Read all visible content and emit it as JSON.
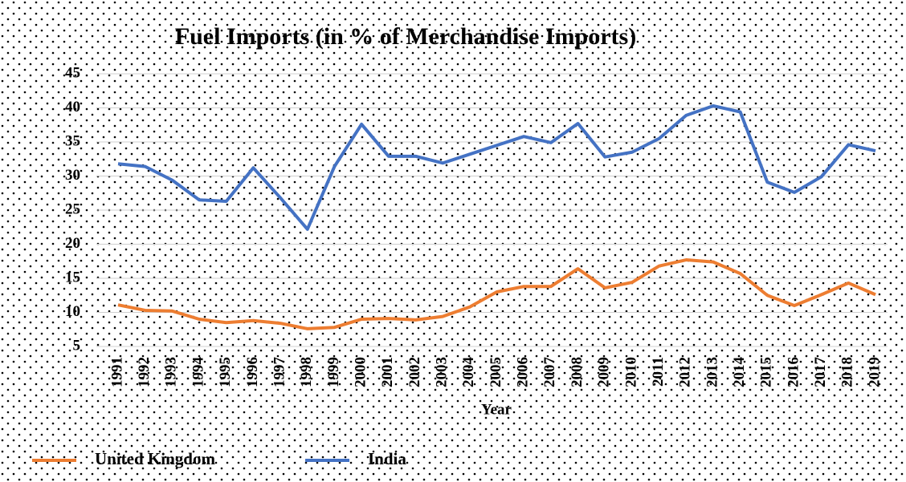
{
  "chart_data": {
    "type": "line",
    "title": "Fuel Imports (in % of Merchandise Imports)",
    "x_label": "Year",
    "categories": [
      "1991",
      "1992",
      "1993",
      "1994",
      "1995",
      "1996",
      "1997",
      "1998",
      "1999",
      "2000",
      "2001",
      "2002",
      "2003",
      "2004",
      "2005",
      "2006",
      "2007",
      "2008",
      "2009",
      "2010",
      "2011",
      "2012",
      "2013",
      "2014",
      "2015",
      "2016",
      "2017",
      "2018",
      "2019"
    ],
    "series": [
      {
        "name": "United Kingdom",
        "color": "#ed7d31",
        "values": [
          11.1,
          10.3,
          10.2,
          9.0,
          8.5,
          8.8,
          8.4,
          7.6,
          7.8,
          9.0,
          9.1,
          8.9,
          9.4,
          10.8,
          13.0,
          13.8,
          13.8,
          16.4,
          13.6,
          14.4,
          16.8,
          17.7,
          17.4,
          15.7,
          12.5,
          11.0,
          12.6,
          14.3,
          12.6
        ]
      },
      {
        "name": "India",
        "color": "#4472c4",
        "values": [
          31.8,
          31.4,
          29.4,
          26.5,
          26.3,
          31.2,
          26.8,
          22.2,
          31.4,
          37.6,
          32.9,
          32.9,
          31.9,
          33.2,
          34.5,
          35.8,
          34.9,
          37.7,
          32.8,
          33.5,
          35.5,
          38.9,
          40.3,
          39.4,
          29.1,
          27.6,
          29.9,
          34.6,
          33.7
        ]
      }
    ],
    "ylim": [
      5,
      45
    ],
    "yticks": [
      5,
      10,
      15,
      20,
      25,
      30,
      35,
      40,
      45
    ],
    "grid": true,
    "legend": "bottom"
  }
}
